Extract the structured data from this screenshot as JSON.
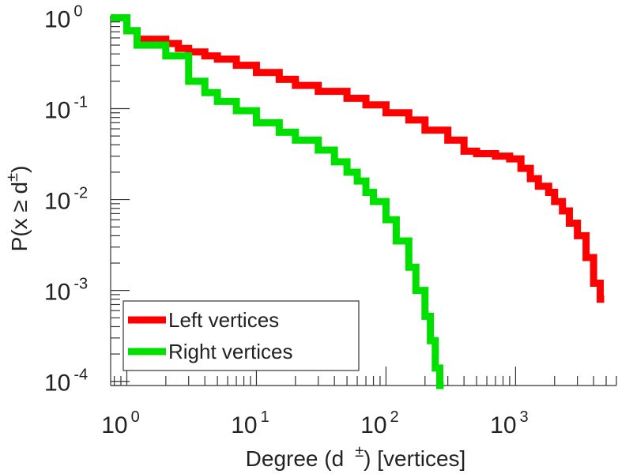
{
  "chart_data": {
    "type": "line",
    "scale": "log-log",
    "title": "",
    "xlabel": "Degree (d ±) [vertices]",
    "xlabel_parts": {
      "main": "Degree (d",
      "sup": "±",
      "tail": ") [vertices]"
    },
    "ylabel_parts": {
      "main": "P(x ≥ d",
      "sup": "±",
      "tail": ")"
    },
    "xlim": [
      0.75,
      6000
    ],
    "ylim": [
      9e-05,
      1.05
    ],
    "x_ticks": [
      {
        "value": 1,
        "base": "10",
        "exp": "0"
      },
      {
        "value": 10,
        "base": "10",
        "exp": "1"
      },
      {
        "value": 100,
        "base": "10",
        "exp": "2"
      },
      {
        "value": 1000,
        "base": "10",
        "exp": "3"
      }
    ],
    "y_ticks": [
      {
        "value": 1,
        "base": "10",
        "exp": "0"
      },
      {
        "value": 0.1,
        "base": "10",
        "exp": "-1"
      },
      {
        "value": 0.01,
        "base": "10",
        "exp": "-2"
      },
      {
        "value": 0.001,
        "base": "10",
        "exp": "-3"
      },
      {
        "value": 0.0001,
        "base": "10",
        "exp": "-4"
      }
    ],
    "legend_position": "bottom-left",
    "series": [
      {
        "name": "Left vertices",
        "color": "#ff0000",
        "x": [
          0.75,
          1,
          1.2,
          2,
          2.5,
          3,
          4,
          5,
          7,
          10,
          15,
          20,
          30,
          50,
          70,
          100,
          150,
          200,
          300,
          400,
          500,
          700,
          900,
          1100,
          1300,
          1500,
          1800,
          2000,
          2300,
          2600,
          3000,
          3500,
          4000,
          4500
        ],
        "y": [
          1.0,
          0.72,
          0.58,
          0.52,
          0.46,
          0.42,
          0.38,
          0.35,
          0.3,
          0.25,
          0.21,
          0.18,
          0.155,
          0.13,
          0.11,
          0.09,
          0.075,
          0.058,
          0.045,
          0.034,
          0.032,
          0.03,
          0.028,
          0.022,
          0.017,
          0.014,
          0.012,
          0.0095,
          0.0075,
          0.0055,
          0.004,
          0.0023,
          0.0012,
          0.0008
        ]
      },
      {
        "name": "Right vertices",
        "color": "#00e000",
        "x": [
          0.75,
          1,
          1.2,
          2,
          3,
          4,
          5,
          7,
          10,
          15,
          20,
          30,
          40,
          50,
          60,
          70,
          80,
          100,
          120,
          150,
          170,
          200,
          220,
          240,
          260
        ],
        "y": [
          1.0,
          0.72,
          0.5,
          0.38,
          0.2,
          0.15,
          0.12,
          0.095,
          0.07,
          0.055,
          0.045,
          0.035,
          0.026,
          0.02,
          0.016,
          0.012,
          0.0095,
          0.006,
          0.0035,
          0.0018,
          0.001,
          0.00052,
          0.00028,
          0.00014,
          9e-05
        ]
      }
    ]
  }
}
